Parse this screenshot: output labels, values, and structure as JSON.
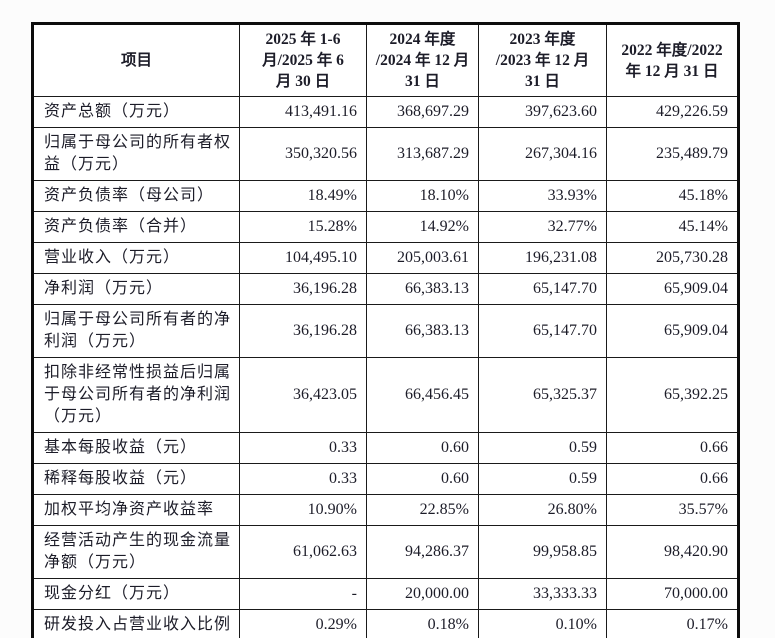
{
  "table": {
    "columns": [
      {
        "label": "项目"
      },
      {
        "label": "2025 年 1-6\n月/2025 年 6\n月 30 日"
      },
      {
        "label": "2024 年度\n/2024 年 12 月\n31 日"
      },
      {
        "label": "2023 年度\n/2023 年 12 月\n31 日"
      },
      {
        "label": "2022 年度/2022\n年 12 月 31 日"
      }
    ],
    "rows": [
      {
        "label": "资产总额（万元）",
        "values": [
          "413,491.16",
          "368,697.29",
          "397,623.60",
          "429,226.59"
        ]
      },
      {
        "label": "归属于母公司的所有者权益（万元）",
        "values": [
          "350,320.56",
          "313,687.29",
          "267,304.16",
          "235,489.79"
        ]
      },
      {
        "label": "资产负债率（母公司）",
        "values": [
          "18.49%",
          "18.10%",
          "33.93%",
          "45.18%"
        ]
      },
      {
        "label": "资产负债率（合并）",
        "values": [
          "15.28%",
          "14.92%",
          "32.77%",
          "45.14%"
        ]
      },
      {
        "label": "营业收入（万元）",
        "values": [
          "104,495.10",
          "205,003.61",
          "196,231.08",
          "205,730.28"
        ]
      },
      {
        "label": "净利润（万元）",
        "values": [
          "36,196.28",
          "66,383.13",
          "65,147.70",
          "65,909.04"
        ]
      },
      {
        "label": "归属于母公司所有者的净利润（万元）",
        "values": [
          "36,196.28",
          "66,383.13",
          "65,147.70",
          "65,909.04"
        ]
      },
      {
        "label": "扣除非经常性损益后归属于母公司所有者的净利润（万元）",
        "values": [
          "36,423.05",
          "66,456.45",
          "65,325.37",
          "65,392.25"
        ]
      },
      {
        "label": "基本每股收益（元）",
        "values": [
          "0.33",
          "0.60",
          "0.59",
          "0.66"
        ]
      },
      {
        "label": "稀释每股收益（元）",
        "values": [
          "0.33",
          "0.60",
          "0.59",
          "0.66"
        ]
      },
      {
        "label": "加权平均净资产收益率",
        "values": [
          "10.90%",
          "22.85%",
          "26.80%",
          "35.57%"
        ]
      },
      {
        "label": "经营活动产生的现金流量净额（万元）",
        "values": [
          "61,062.63",
          "94,286.37",
          "99,958.85",
          "98,420.90"
        ]
      },
      {
        "label": "现金分红（万元）",
        "values": [
          "-",
          "20,000.00",
          "33,333.33",
          "70,000.00"
        ]
      },
      {
        "label": "研发投入占营业收入比例",
        "values": [
          "0.29%",
          "0.18%",
          "0.10%",
          "0.17%"
        ]
      }
    ]
  }
}
